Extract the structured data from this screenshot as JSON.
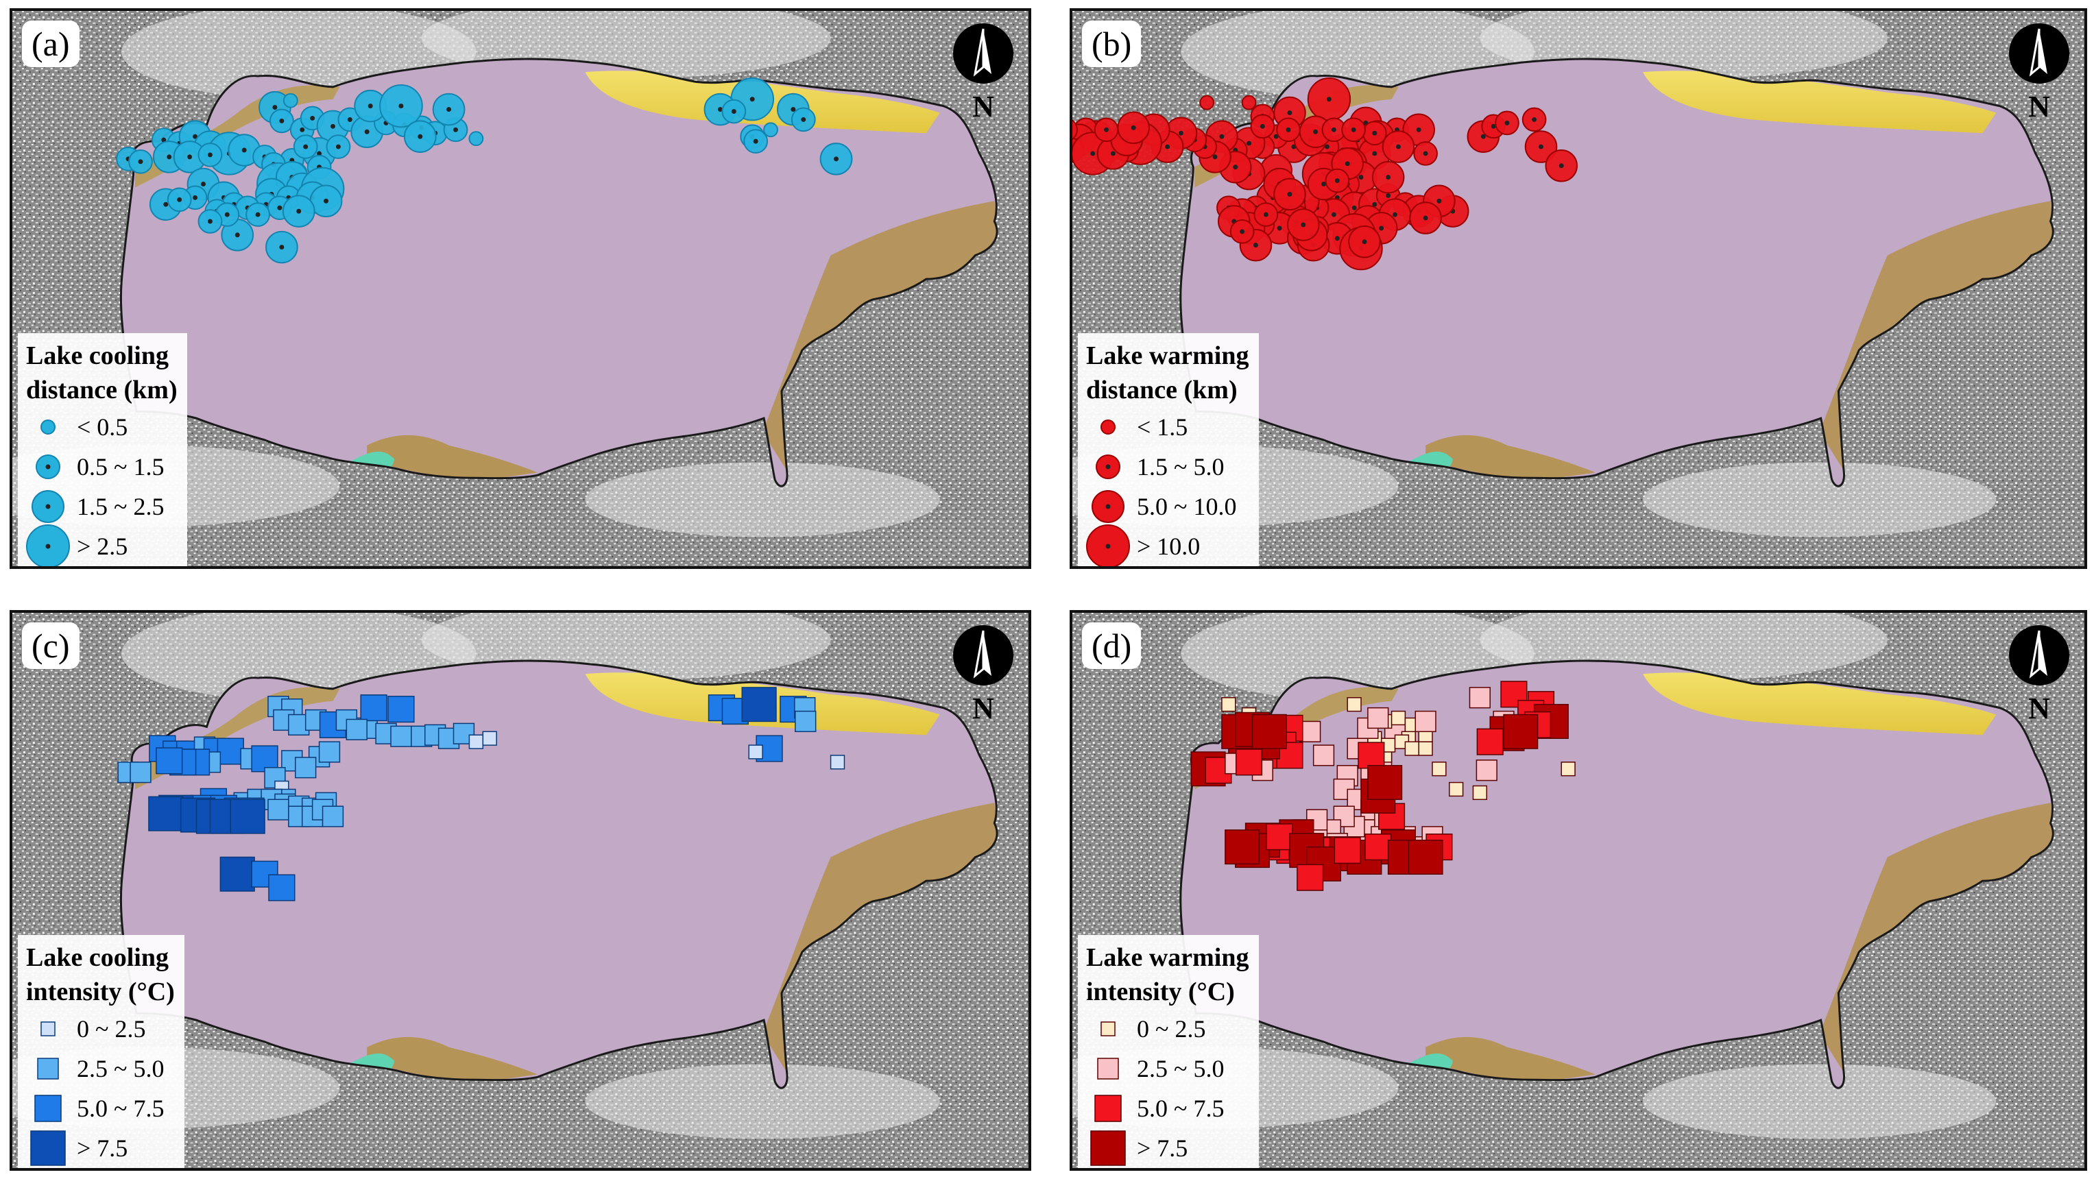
{
  "north_label": "N",
  "colors": {
    "cooling_circle": "#27b2de",
    "warming_circle": "#e8141c",
    "cool_sq": [
      "#cfe0f8",
      "#5cb2f0",
      "#1e7be8",
      "#0d4fb4"
    ],
    "warm_sq": [
      "#fdebc8",
      "#f9c2c6",
      "#f2141e",
      "#b00000"
    ]
  },
  "panels": [
    {
      "label": "(a)",
      "legend_title_1": "Lake cooling",
      "legend_title_2": "distance (km)",
      "classes": [
        "< 0.5",
        "0.5 ~ 1.5",
        "1.5 ~ 2.5",
        "> 2.5"
      ],
      "symbol": "circle",
      "palette": "cooling"
    },
    {
      "label": "(b)",
      "legend_title_1": "Lake warming",
      "legend_title_2": "distance (km)",
      "classes": [
        "< 1.5",
        "1.5 ~ 5.0",
        "5.0 ~ 10.0",
        "> 10.0"
      ],
      "symbol": "circle",
      "palette": "warming"
    },
    {
      "label": "(c)",
      "legend_title_1": "Lake cooling",
      "legend_title_2": "intensity (°C)",
      "classes": [
        "0 ~ 2.5",
        "2.5 ~ 5.0",
        "5.0 ~ 7.5",
        "> 7.5"
      ],
      "symbol": "square",
      "palette": "cooling"
    },
    {
      "label": "(d)",
      "legend_title_1": "Lake warming",
      "legend_title_2": "intensity (°C)",
      "classes": [
        "0 ~ 2.5",
        "2.5 ~ 5.0",
        "5.0 ~ 7.5",
        "> 7.5"
      ],
      "symbol": "square",
      "palette": "warming"
    }
  ]
}
